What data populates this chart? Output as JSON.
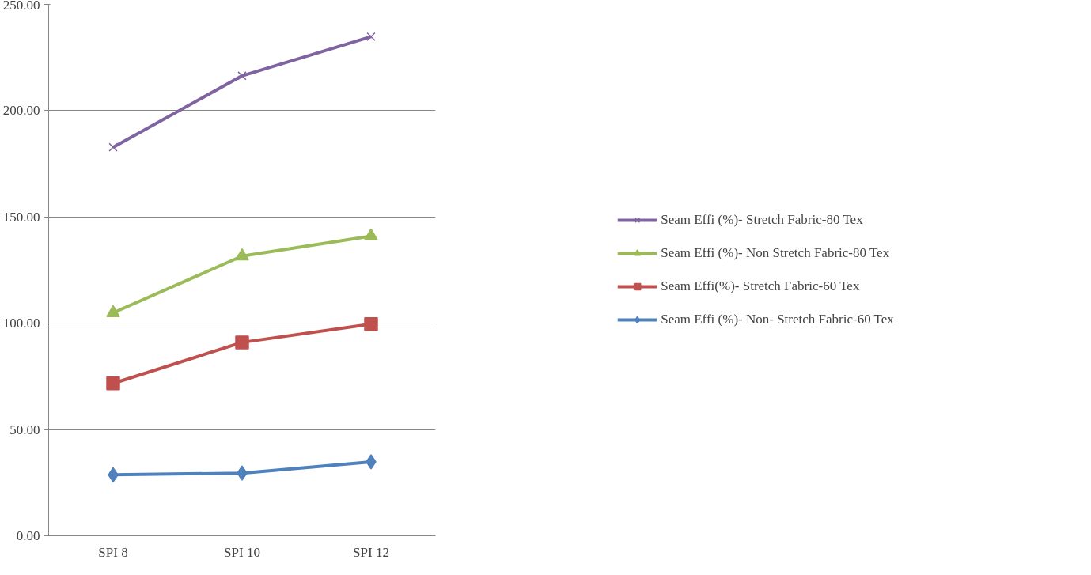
{
  "chart_data": {
    "type": "line",
    "categories": [
      "SPI 8",
      "SPI 10",
      "SPI 12"
    ],
    "series": [
      {
        "name": "Seam Effi (%)- Stretch Fabric-80 Tex",
        "color": "#8064a2",
        "marker": "cross",
        "values": [
          182.8,
          216.4,
          234.8
        ]
      },
      {
        "name": "Seam Effi (%)- Non Stretch Fabric-80 Tex",
        "color": "#9bbb59",
        "marker": "triangle",
        "values": [
          104.9,
          131.6,
          141.0
        ]
      },
      {
        "name": "Seam Effi(%)- Stretch Fabric-60 Tex",
        "color": "#c0504d",
        "marker": "square",
        "values": [
          71.7,
          91.0,
          99.6
        ]
      },
      {
        "name": "Seam Effi (%)- Non- Stretch Fabric-60 Tex",
        "color": "#4f81bd",
        "marker": "diamond",
        "values": [
          28.7,
          29.5,
          34.8
        ]
      }
    ],
    "ylim": [
      0,
      250
    ],
    "yticks": [
      {
        "value": 0,
        "label": "0.00"
      },
      {
        "value": 50,
        "label": "50.00"
      },
      {
        "value": 100,
        "label": "100.00"
      },
      {
        "value": 150,
        "label": "150.00"
      },
      {
        "value": 200,
        "label": "200.00"
      },
      {
        "value": 250,
        "label": "250.00"
      }
    ],
    "grid": "y",
    "legend": "right",
    "line_style": "solid"
  }
}
